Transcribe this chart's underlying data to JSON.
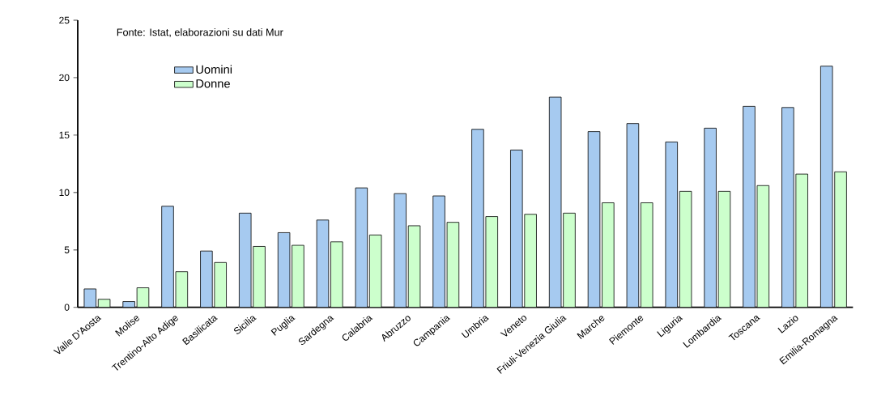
{
  "chart_data": {
    "type": "bar",
    "categories": [
      "Valle D'Aosta",
      "Molise",
      "Trentino-Alto Adige",
      "Basilicata",
      "Sicilia",
      "Puglia",
      "Sardegna",
      "Calabria",
      "Abruzzo",
      "Campania",
      "Umbria",
      "Veneto",
      "Friuli-Venezia Giulia",
      "Marche",
      "Piemonte",
      "Liguria",
      "Lombardia",
      "Toscana",
      "Lazio",
      "Emilia-Romagna"
    ],
    "series": [
      {
        "name": "Uomini",
        "color": "#a6caf0",
        "values": [
          1.6,
          0.5,
          8.8,
          4.9,
          8.2,
          6.5,
          7.6,
          10.4,
          9.9,
          9.7,
          15.5,
          13.7,
          18.3,
          15.3,
          16.0,
          14.4,
          15.6,
          17.5,
          17.4,
          21.0
        ]
      },
      {
        "name": "Donne",
        "color": "#ccffcc",
        "values": [
          0.7,
          1.7,
          3.1,
          3.9,
          5.3,
          5.4,
          5.7,
          6.3,
          7.1,
          7.4,
          7.9,
          8.1,
          8.2,
          9.1,
          9.1,
          10.1,
          10.1,
          10.6,
          11.6,
          11.8
        ]
      }
    ],
    "ylim": [
      0,
      25
    ],
    "yticks": [
      0,
      5,
      10,
      15,
      20,
      25
    ],
    "grid": false,
    "legend": "top left",
    "annotations": [
      "Fonte: Istat, elaborazioni su dati Mur"
    ]
  }
}
